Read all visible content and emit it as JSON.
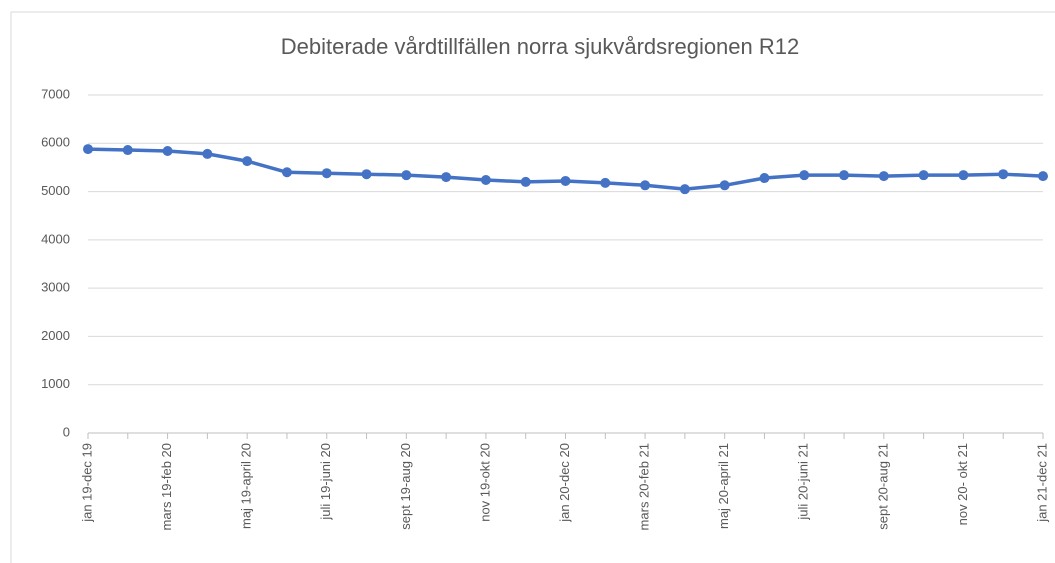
{
  "chart_data": {
    "type": "line",
    "title": "Debiterade vårdtillfällen norra sjukvårdsregionen R12",
    "categories": [
      "jan 19-dec 19",
      null,
      "mars 19-feb 20",
      null,
      "maj 19-april 20",
      null,
      "juli 19-juni 20",
      null,
      "sept 19-aug 20",
      null,
      "nov 19-okt 20",
      null,
      "jan 20-dec 20",
      null,
      "mars 20-feb 21",
      null,
      "maj 20-april 21",
      null,
      "juli 20-juni 21",
      null,
      "sept 20-aug 21",
      null,
      "nov 20- okt 21",
      null,
      "jan 21-dec 21"
    ],
    "series": [
      {
        "color": "#4472c4",
        "values": [
          5880,
          5860,
          5840,
          5780,
          5630,
          5400,
          5380,
          5360,
          5340,
          5300,
          5240,
          5200,
          5220,
          5180,
          5130,
          5050,
          5130,
          5280,
          5340,
          5340,
          5320,
          5340,
          5340,
          5360,
          5320
        ]
      }
    ],
    "ylim": [
      0,
      7000
    ],
    "yticks": [
      0,
      1000,
      2000,
      3000,
      4000,
      5000,
      6000,
      7000
    ],
    "grid": true
  }
}
